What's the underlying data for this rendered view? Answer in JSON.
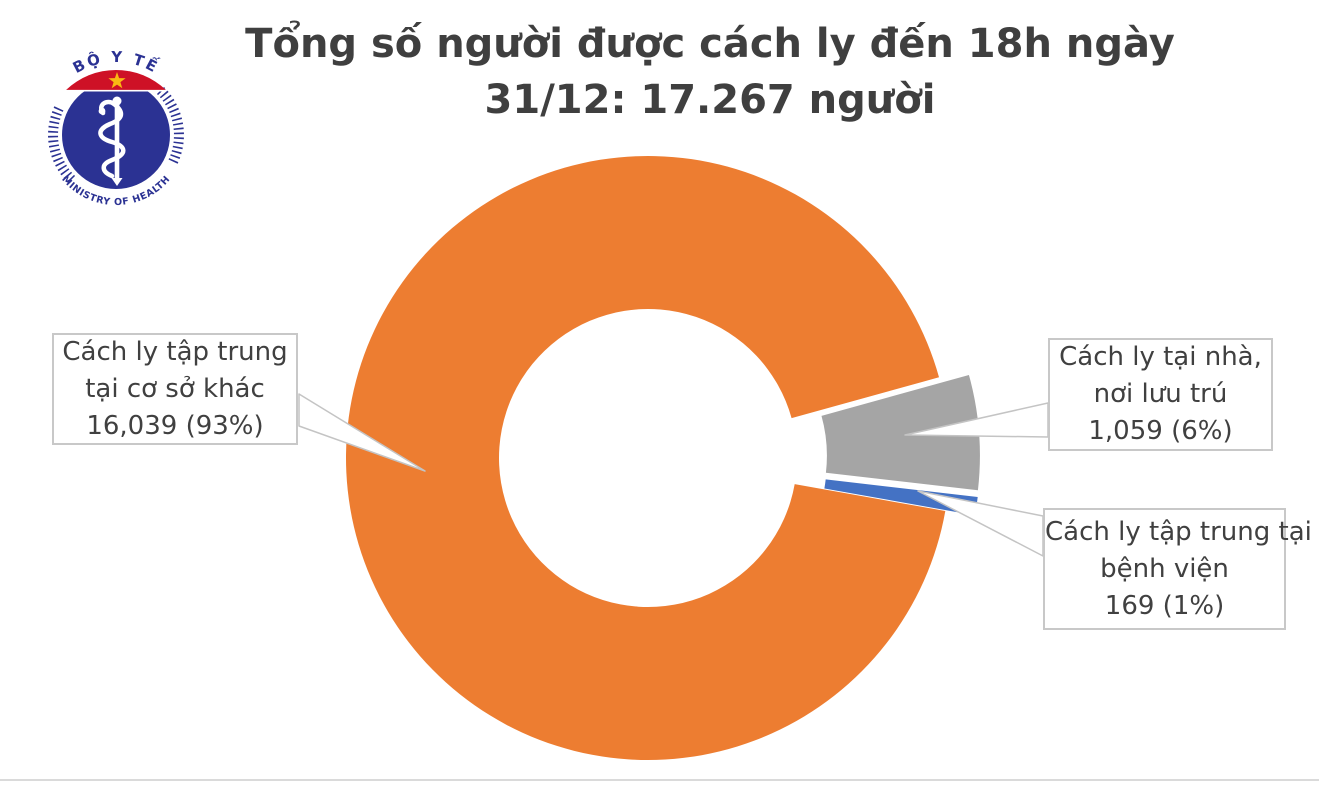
{
  "header": {
    "title_line1": "Tổng số người được cách ly đến 18h ngày",
    "title_line2": "31/12: 17.267 người"
  },
  "logo": {
    "top_text": "BỘ Y TẾ",
    "bottom_text": "MINISTRY OF HEALTH",
    "navy": "#2B3293",
    "red": "#CE1126",
    "star_yellow": "#F9B913"
  },
  "chart_data": {
    "type": "pie",
    "subtype": "exploded-donut",
    "title": "Tổng số người được cách ly đến 18h ngày 31/12: 17.267 người",
    "total": 17267,
    "total_unit": "người",
    "start_angle_deg": -15.5,
    "draw_order": [
      1,
      2,
      0
    ],
    "slices": [
      {
        "key": "other-facilities",
        "label": "Cách ly tập trung tại cơ sở khác",
        "value": 16039,
        "percent": "93%",
        "display": "16,039 (93%)",
        "color": "#ED7D31",
        "exploded": false
      },
      {
        "key": "home-residence",
        "label": "Cách ly tại nhà, nơi lưu trú",
        "value": 1059,
        "percent": "6%",
        "display": "1,059 (6%)",
        "color": "#A5A5A5",
        "exploded": true
      },
      {
        "key": "hospital",
        "label": "Cách ly tập trung tại bệnh viện",
        "value": 169,
        "percent": "1%",
        "display": "169 (1%)",
        "color": "#4472C4",
        "exploded": true
      }
    ]
  },
  "annotations": {
    "left": {
      "lines": [
        "Cách ly tập trung",
        "tại cơ sở khác",
        "16,039 (93%)"
      ]
    },
    "right_top": {
      "lines": [
        "Cách ly tại nhà,",
        "nơi lưu trú",
        "1,059 (6%)"
      ]
    },
    "right_bottom": {
      "lines": [
        "Cách ly tập trung tại",
        "bệnh viện",
        "169 (1%)"
      ]
    }
  }
}
